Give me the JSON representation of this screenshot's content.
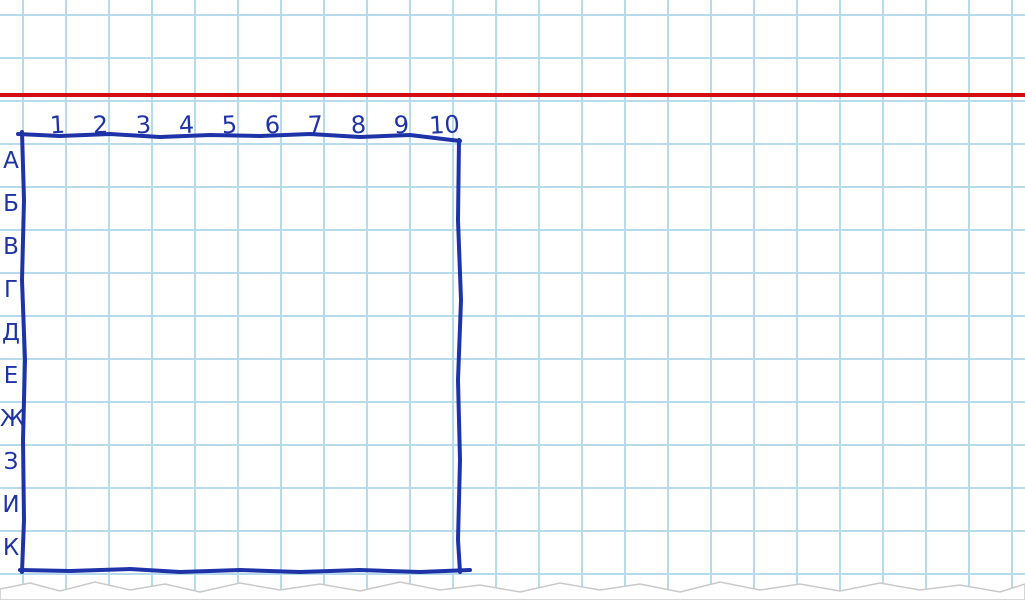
{
  "board": {
    "column_labels": [
      "1",
      "2",
      "3",
      "4",
      "5",
      "6",
      "7",
      "8",
      "9",
      "10"
    ],
    "row_labels": [
      "А",
      "Б",
      "В",
      "Г",
      "Д",
      "Е",
      "Ж",
      "З",
      "И",
      "К"
    ]
  },
  "colors": {
    "paper": "#ffffff",
    "grid_line": "#b7dbeb",
    "margin_line": "#d30e12",
    "ink": "#1f33a8"
  }
}
